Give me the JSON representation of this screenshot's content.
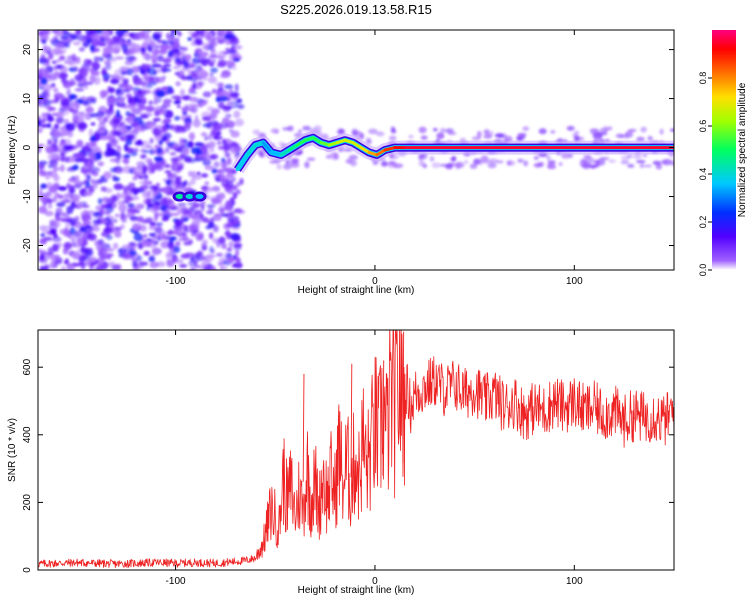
{
  "figure_title": "S225.2026.019.13.58.R15",
  "chart_data": [
    {
      "type": "heatmap",
      "title": "S225.2026.019.13.58.R15",
      "xlabel": "Height of straight line (km)",
      "ylabel": "Frequency (Hz)",
      "xlim": [
        -169,
        150
      ],
      "ylim": [
        -25,
        24
      ],
      "xticks": [
        -100,
        0,
        100
      ],
      "yticks": [
        -20,
        -10,
        0,
        10,
        20
      ],
      "grid": false,
      "noise_region_x": [
        -169,
        -68
      ],
      "spectral_line_frequency_hz": 0,
      "colorbar": {
        "label": "Normalized spectral amplitude",
        "range": [
          0,
          1
        ],
        "ticks": [
          0.0,
          0.2,
          0.4,
          0.6,
          0.8
        ],
        "colors": [
          "#ffffff",
          "#a060ff",
          "#5000ff",
          "#0030ff",
          "#00c8ff",
          "#00ff60",
          "#a0ff00",
          "#ffe000",
          "#ff7000",
          "#ff0000",
          "#ff0080"
        ]
      },
      "ridge": {
        "x": [
          -69,
          -64,
          -60,
          -56,
          -52,
          -47,
          -43,
          -39,
          -35,
          -31,
          -27,
          -23,
          -19,
          -15,
          -11,
          -7,
          -3,
          1,
          5,
          10,
          15,
          20,
          150
        ],
        "freq": [
          -4.5,
          -1.5,
          0.5,
          1,
          -1,
          -1.5,
          -0.5,
          0.5,
          1.5,
          2,
          1,
          0.5,
          1,
          1.5,
          1,
          0,
          -1,
          -1.5,
          -0.5,
          0,
          0,
          0,
          0
        ],
        "amp": [
          0.4,
          0.35,
          0.45,
          0.35,
          0.3,
          0.4,
          0.45,
          0.5,
          0.55,
          0.5,
          0.55,
          0.6,
          0.65,
          0.7,
          0.65,
          0.7,
          0.75,
          0.8,
          0.85,
          0.9,
          0.95,
          0.95,
          0.95
        ]
      },
      "blobs": [
        {
          "x": -98,
          "freq": -10,
          "amp": 0.45
        },
        {
          "x": -93,
          "freq": -10,
          "amp": 0.4
        },
        {
          "x": -88,
          "freq": -10,
          "amp": 0.35
        }
      ]
    },
    {
      "type": "line",
      "xlabel": "Height of straight line (km)",
      "ylabel": "SNR (10 * v/v)",
      "xlim": [
        -169,
        150
      ],
      "ylim": [
        0,
        710
      ],
      "xticks": [
        -100,
        0,
        100
      ],
      "yticks": [
        0,
        200,
        400,
        600
      ],
      "grid": false,
      "series": [
        {
          "name": "SNR",
          "color": "#ee2222",
          "x": [
            -169,
            -160,
            -150,
            -140,
            -130,
            -120,
            -110,
            -100,
            -90,
            -80,
            -70,
            -65,
            -60,
            -56,
            -52,
            -48,
            -46,
            -44,
            -42,
            -40,
            -38,
            -36,
            -34,
            -32,
            -30,
            -28,
            -26,
            -24,
            -22,
            -20,
            -18,
            -16,
            -14,
            -12,
            -10,
            -8,
            -6,
            -4,
            -2,
            0,
            2,
            4,
            6,
            8,
            10,
            12,
            14,
            16,
            18,
            20,
            25,
            30,
            35,
            40,
            45,
            50,
            55,
            60,
            65,
            70,
            75,
            80,
            85,
            90,
            95,
            100,
            105,
            110,
            115,
            120,
            125,
            130,
            135,
            140,
            145,
            150
          ],
          "y": [
            18,
            20,
            22,
            20,
            18,
            20,
            22,
            20,
            22,
            20,
            25,
            28,
            35,
            80,
            180,
            130,
            280,
            200,
            250,
            160,
            230,
            180,
            300,
            200,
            260,
            180,
            290,
            210,
            270,
            230,
            360,
            250,
            320,
            240,
            340,
            280,
            380,
            300,
            360,
            430,
            380,
            470,
            400,
            520,
            460,
            560,
            500,
            540,
            480,
            520,
            540,
            560,
            530,
            550,
            520,
            540,
            500,
            520,
            480,
            500,
            460,
            480,
            470,
            500,
            480,
            500,
            470,
            480,
            460,
            470,
            440,
            460,
            450,
            460,
            440,
            470
          ]
        }
      ],
      "peaks": [
        {
          "x": -36,
          "y": 580
        },
        {
          "x": -12,
          "y": 610
        },
        {
          "x": 4,
          "y": 620
        },
        {
          "x": 14,
          "y": 705
        }
      ]
    }
  ]
}
